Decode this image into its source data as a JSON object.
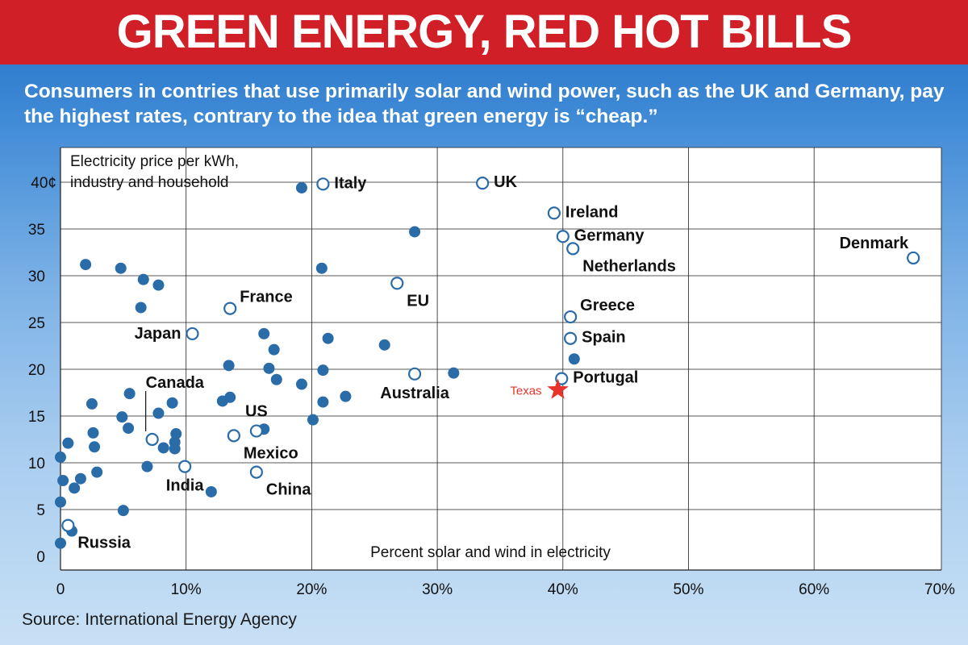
{
  "header": {
    "title": "GREEN ENERGY, RED HOT BILLS",
    "subtitle": "Consumers in contries that use primarily solar and wind power, such as the UK and Germany, pay the highest rates, contrary to the idea that green energy is “cheap.”"
  },
  "source": "Source: International Energy Agency",
  "colors": {
    "banner": "#d01f26",
    "point": "#2a6ca8",
    "texas": "#e8332a",
    "plot_bg": "#ffffff",
    "grid": "#222222"
  },
  "chart_data": {
    "type": "scatter",
    "ylabel": "Electricity price per kWh, industry and household",
    "xlabel": "Percent solar and wind in electricity",
    "xlim": [
      0,
      70
    ],
    "ylim": [
      0,
      40
    ],
    "x_ticks": [
      {
        "value": 0,
        "label": "0"
      },
      {
        "value": 10,
        "label": "10%"
      },
      {
        "value": 20,
        "label": "20%"
      },
      {
        "value": 30,
        "label": "30%"
      },
      {
        "value": 40,
        "label": "40%"
      },
      {
        "value": 50,
        "label": "50%"
      },
      {
        "value": 60,
        "label": "60%"
      },
      {
        "value": 70,
        "label": "70%"
      }
    ],
    "y_ticks": [
      {
        "value": 0,
        "label": "0"
      },
      {
        "value": 5,
        "label": "5"
      },
      {
        "value": 10,
        "label": "10"
      },
      {
        "value": 15,
        "label": "15"
      },
      {
        "value": 20,
        "label": "20"
      },
      {
        "value": 25,
        "label": "25"
      },
      {
        "value": 30,
        "label": "30"
      },
      {
        "value": 35,
        "label": "35"
      },
      {
        "value": 40,
        "label": "40¢"
      }
    ],
    "grid": true,
    "labeled_points": [
      {
        "name": "Italy",
        "x": 20.9,
        "y": 39.8,
        "label_pos": "right"
      },
      {
        "name": "UK",
        "x": 33.6,
        "y": 39.9,
        "label_pos": "right"
      },
      {
        "name": "Ireland",
        "x": 39.3,
        "y": 36.7,
        "label_pos": "right"
      },
      {
        "name": "Germany",
        "x": 40.0,
        "y": 34.2,
        "label_pos": "right"
      },
      {
        "name": "Netherlands",
        "x": 40.8,
        "y": 32.9,
        "label_pos": "below-right"
      },
      {
        "name": "Denmark",
        "x": 67.9,
        "y": 31.9,
        "label_pos": "above-left"
      },
      {
        "name": "EU",
        "x": 26.8,
        "y": 29.2,
        "label_pos": "below-right"
      },
      {
        "name": "France",
        "x": 13.5,
        "y": 26.5,
        "label_pos": "above-right"
      },
      {
        "name": "Greece",
        "x": 40.6,
        "y": 25.6,
        "label_pos": "above-right"
      },
      {
        "name": "Japan",
        "x": 10.5,
        "y": 23.8,
        "label_pos": "left"
      },
      {
        "name": "Spain",
        "x": 40.6,
        "y": 23.3,
        "label_pos": "right"
      },
      {
        "name": "Australia",
        "x": 28.2,
        "y": 19.5,
        "label_pos": "below"
      },
      {
        "name": "Portugal",
        "x": 39.9,
        "y": 19.0,
        "label_pos": "right"
      },
      {
        "name": "Canada",
        "x": 7.3,
        "y": 12.5,
        "label_pos": "above-leader"
      },
      {
        "name": "US",
        "x": 15.6,
        "y": 13.4,
        "label_pos": "above"
      },
      {
        "name": "Mexico",
        "x": 13.8,
        "y": 12.9,
        "label_pos": "below-right"
      },
      {
        "name": "India",
        "x": 9.9,
        "y": 9.6,
        "label_pos": "below"
      },
      {
        "name": "China",
        "x": 15.6,
        "y": 9.0,
        "label_pos": "below-right"
      },
      {
        "name": "Russia",
        "x": 0.6,
        "y": 3.3,
        "label_pos": "below-right"
      }
    ],
    "highlight": {
      "name": "Texas",
      "x": 39.6,
      "y": 17.8
    },
    "unlabeled_points": [
      [
        19.2,
        39.4
      ],
      [
        28.2,
        34.7
      ],
      [
        2.0,
        31.2
      ],
      [
        4.8,
        30.8
      ],
      [
        20.8,
        30.8
      ],
      [
        6.6,
        29.6
      ],
      [
        7.8,
        29.0
      ],
      [
        6.4,
        26.6
      ],
      [
        16.2,
        23.8
      ],
      [
        21.3,
        23.3
      ],
      [
        25.8,
        22.6
      ],
      [
        17.0,
        22.1
      ],
      [
        40.9,
        21.1
      ],
      [
        13.4,
        20.4
      ],
      [
        16.6,
        20.1
      ],
      [
        20.9,
        19.9
      ],
      [
        31.3,
        19.6
      ],
      [
        17.2,
        18.9
      ],
      [
        19.2,
        18.4
      ],
      [
        5.5,
        17.4
      ],
      [
        13.5,
        17.0
      ],
      [
        22.7,
        17.1
      ],
      [
        12.9,
        16.6
      ],
      [
        20.9,
        16.5
      ],
      [
        2.5,
        16.3
      ],
      [
        8.9,
        16.4
      ],
      [
        7.8,
        15.3
      ],
      [
        4.9,
        14.9
      ],
      [
        20.1,
        14.6
      ],
      [
        5.4,
        13.7
      ],
      [
        16.2,
        13.6
      ],
      [
        2.6,
        13.2
      ],
      [
        9.2,
        13.1
      ],
      [
        0.6,
        12.1
      ],
      [
        9.1,
        12.2
      ],
      [
        2.7,
        11.7
      ],
      [
        8.2,
        11.6
      ],
      [
        9.1,
        11.5
      ],
      [
        0.0,
        10.6
      ],
      [
        6.9,
        9.6
      ],
      [
        2.9,
        9.0
      ],
      [
        1.6,
        8.3
      ],
      [
        0.2,
        8.1
      ],
      [
        1.1,
        7.3
      ],
      [
        12.0,
        6.9
      ],
      [
        0.0,
        5.8
      ],
      [
        5.0,
        4.9
      ],
      [
        0.9,
        2.7
      ],
      [
        0.0,
        1.4
      ]
    ],
    "annotations": [
      {
        "text": "Texas",
        "type": "highlight-label"
      }
    ]
  }
}
